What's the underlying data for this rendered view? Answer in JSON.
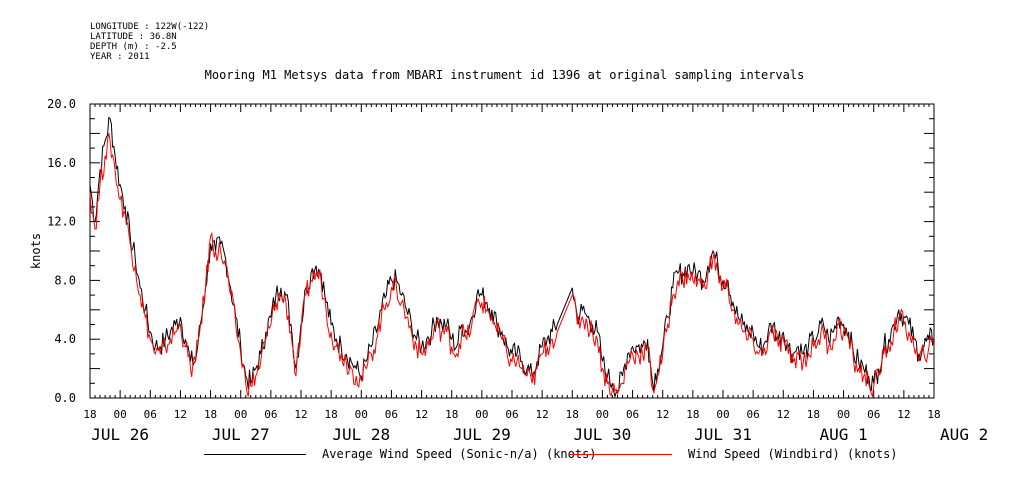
{
  "header": {
    "longitude": "LONGITUDE : 122W(-122)",
    "latitude": "LATITUDE : 36.8N",
    "depth": "DEPTH (m) : -2.5",
    "year": "YEAR : 2011"
  },
  "chart_data": {
    "type": "line",
    "title": "Mooring M1 Metsys data from MBARI instrument id 1396 at original sampling intervals",
    "ylabel": "knots",
    "xlabel": "",
    "ylim": [
      0,
      20
    ],
    "y_ticks": [
      "0.0",
      "4.0",
      "8.0",
      "12.0",
      "16.0",
      "20.0"
    ],
    "xlim_hours": [
      0,
      168
    ],
    "x_start": "2011-07-25 18:00",
    "x_hour_ticks": [
      "18",
      "00",
      "06",
      "12",
      "18",
      "00",
      "06",
      "12",
      "18",
      "00",
      "06",
      "12",
      "18",
      "00",
      "06",
      "12",
      "18",
      "00",
      "06",
      "12",
      "18",
      "00",
      "06",
      "12",
      "18",
      "00",
      "06",
      "12",
      "18"
    ],
    "x_date_labels": [
      "JUL 26",
      "JUL 27",
      "JUL 28",
      "JUL 29",
      "JUL 30",
      "JUL 31",
      "AUG  1",
      "AUG  2"
    ],
    "grid": false,
    "legend": "bottom",
    "series": [
      {
        "name": "Average Wind Speed (Sonic-n/a) (knots)",
        "color": "#000000",
        "x": [
          0,
          1,
          2,
          3,
          4,
          5,
          6,
          7,
          8,
          9,
          10,
          11,
          12,
          13,
          14,
          15,
          16,
          17,
          18,
          19,
          20,
          21,
          22,
          23,
          24,
          25,
          26,
          27,
          28,
          29,
          30,
          31,
          32,
          33,
          34,
          35,
          36,
          37,
          38,
          39,
          40,
          41,
          42,
          43,
          44,
          45,
          46,
          47,
          48,
          49,
          50,
          51,
          52,
          53,
          54,
          55,
          56,
          57,
          58,
          59,
          60,
          61,
          62,
          63,
          64,
          65,
          66,
          67,
          68,
          69,
          70,
          71,
          72,
          73,
          74,
          75,
          76,
          77,
          78,
          79,
          80,
          81,
          82,
          83,
          84,
          85,
          86,
          87,
          88,
          89,
          90,
          91,
          92,
          93,
          96,
          97,
          98,
          99,
          100,
          101,
          102,
          103,
          104,
          105,
          106,
          107,
          108,
          109,
          110,
          111,
          112,
          113,
          114,
          115,
          116,
          117,
          118,
          119,
          120,
          121,
          122,
          123,
          124,
          125,
          126,
          127,
          128,
          129,
          130,
          131,
          132,
          133,
          134,
          135,
          136,
          137,
          138,
          139,
          140,
          141,
          142,
          143,
          144,
          145,
          146,
          147,
          148,
          149,
          150,
          151,
          152,
          153,
          154,
          155,
          156,
          157,
          158,
          159,
          160,
          161,
          162,
          163,
          164,
          165,
          166,
          167,
          168
        ],
        "y": [
          14.5,
          12.0,
          15.5,
          17.5,
          19.0,
          16.5,
          14.5,
          13.0,
          11.0,
          9.5,
          7.5,
          6.0,
          4.5,
          3.5,
          3.5,
          4.0,
          4.5,
          5.0,
          5.5,
          4.0,
          2.5,
          2.5,
          5.0,
          7.5,
          10.5,
          10.0,
          10.5,
          9.5,
          7.5,
          5.5,
          3.5,
          1.5,
          1.0,
          2.0,
          3.0,
          4.5,
          5.5,
          7.0,
          7.5,
          7.0,
          5.0,
          2.0,
          5.0,
          7.5,
          8.5,
          9.0,
          8.5,
          6.5,
          5.0,
          4.0,
          3.5,
          3.0,
          2.5,
          2.0,
          1.5,
          2.5,
          3.5,
          4.5,
          6.0,
          7.0,
          8.0,
          8.0,
          7.0,
          6.0,
          5.0,
          4.0,
          3.5,
          4.0,
          4.5,
          5.5,
          5.0,
          5.0,
          4.0,
          3.5,
          5.0,
          4.5,
          5.5,
          7.0,
          7.0,
          6.5,
          6.0,
          5.0,
          4.5,
          3.5,
          3.0,
          3.0,
          2.5,
          2.0,
          1.5,
          2.5,
          3.5,
          4.0,
          4.5,
          5.0,
          7.5,
          5.5,
          6.0,
          5.5,
          5.0,
          4.5,
          2.5,
          1.5,
          1.0,
          0.5,
          1.5,
          3.0,
          3.5,
          3.5,
          3.5,
          4.0,
          1.0,
          2.0,
          3.5,
          5.5,
          7.5,
          8.5,
          8.5,
          9.0,
          8.5,
          8.5,
          8.0,
          9.0,
          10.0,
          9.0,
          8.0,
          8.0,
          6.5,
          5.5,
          5.0,
          4.5,
          4.5,
          3.5,
          3.5,
          4.5,
          5.0,
          4.0,
          4.5,
          3.5,
          3.0,
          3.5,
          3.0,
          3.5,
          4.0,
          4.5,
          5.0,
          4.0,
          4.5,
          5.5,
          5.0,
          4.5,
          3.0,
          2.5,
          2.0,
          1.5,
          1.0,
          2.0,
          3.5,
          4.0,
          5.0,
          6.0,
          5.5,
          5.0,
          4.0,
          3.0,
          3.5,
          4.0,
          4.0
        ],
        "gaps_after_hour": [
          93
        ]
      },
      {
        "name": "Wind Speed (Windbird) (knots)",
        "color": "#ff0000",
        "x": [
          0,
          1,
          2,
          3,
          4,
          5,
          6,
          7,
          8,
          9,
          10,
          11,
          12,
          13,
          14,
          15,
          16,
          17,
          18,
          19,
          20,
          21,
          22,
          23,
          24,
          25,
          26,
          27,
          28,
          29,
          30,
          31,
          32,
          33,
          34,
          35,
          36,
          37,
          38,
          39,
          40,
          41,
          42,
          43,
          44,
          45,
          46,
          47,
          48,
          49,
          50,
          51,
          52,
          53,
          54,
          55,
          56,
          57,
          58,
          59,
          60,
          61,
          62,
          63,
          64,
          65,
          66,
          67,
          68,
          69,
          70,
          71,
          72,
          73,
          74,
          75,
          76,
          77,
          78,
          79,
          80,
          81,
          82,
          83,
          84,
          85,
          86,
          87,
          88,
          89,
          90,
          91,
          92,
          93,
          96,
          97,
          98,
          99,
          100,
          101,
          102,
          103,
          104,
          105,
          106,
          107,
          108,
          109,
          110,
          111,
          112,
          113,
          114,
          115,
          116,
          117,
          118,
          119,
          120,
          121,
          122,
          123,
          124,
          125,
          126,
          127,
          128,
          129,
          130,
          131,
          132,
          133,
          134,
          135,
          136,
          137,
          138,
          139,
          140,
          141,
          142,
          143,
          144,
          145,
          146,
          147,
          148,
          149,
          150,
          151,
          152,
          153,
          154,
          155,
          156,
          157,
          158,
          159,
          160,
          161,
          162,
          163,
          164,
          165,
          166,
          167,
          168
        ],
        "y": [
          14.0,
          11.5,
          14.5,
          16.5,
          17.5,
          15.5,
          13.5,
          12.5,
          10.5,
          9.0,
          7.0,
          5.5,
          4.0,
          3.0,
          3.0,
          3.5,
          4.0,
          4.5,
          5.0,
          3.5,
          2.0,
          2.5,
          5.0,
          7.5,
          11.0,
          10.0,
          10.0,
          9.0,
          7.0,
          5.0,
          3.0,
          1.0,
          0.8,
          1.5,
          2.5,
          4.0,
          5.0,
          6.5,
          7.0,
          6.5,
          4.5,
          1.5,
          4.5,
          7.0,
          8.0,
          8.5,
          8.0,
          6.0,
          4.5,
          3.5,
          3.0,
          2.5,
          2.0,
          1.5,
          1.2,
          2.0,
          3.0,
          4.0,
          5.5,
          6.5,
          7.5,
          7.5,
          6.5,
          5.5,
          4.5,
          3.5,
          3.0,
          3.5,
          4.0,
          5.0,
          4.5,
          4.5,
          3.5,
          3.0,
          4.5,
          4.0,
          5.0,
          6.5,
          6.5,
          6.0,
          5.5,
          4.5,
          4.0,
          3.0,
          2.5,
          2.5,
          2.0,
          1.5,
          1.0,
          2.0,
          3.0,
          3.5,
          4.0,
          4.5,
          7.0,
          5.0,
          5.5,
          5.0,
          4.5,
          4.0,
          2.0,
          1.0,
          0.6,
          0.3,
          1.0,
          2.5,
          3.0,
          3.0,
          3.0,
          3.5,
          0.6,
          1.5,
          3.0,
          5.0,
          7.0,
          8.0,
          8.0,
          8.5,
          8.0,
          8.0,
          7.5,
          8.5,
          9.5,
          8.5,
          7.5,
          7.5,
          6.0,
          5.0,
          4.5,
          4.0,
          4.0,
          3.0,
          3.0,
          4.0,
          4.5,
          3.5,
          4.0,
          3.0,
          2.5,
          3.0,
          2.5,
          3.0,
          3.5,
          4.0,
          4.5,
          3.5,
          4.0,
          5.0,
          4.5,
          4.0,
          2.5,
          2.0,
          1.5,
          1.0,
          0.8,
          1.5,
          3.0,
          3.5,
          4.5,
          5.5,
          5.0,
          4.5,
          3.5,
          2.5,
          3.0,
          3.5,
          3.5
        ],
        "gaps_after_hour": [
          93
        ]
      }
    ]
  }
}
